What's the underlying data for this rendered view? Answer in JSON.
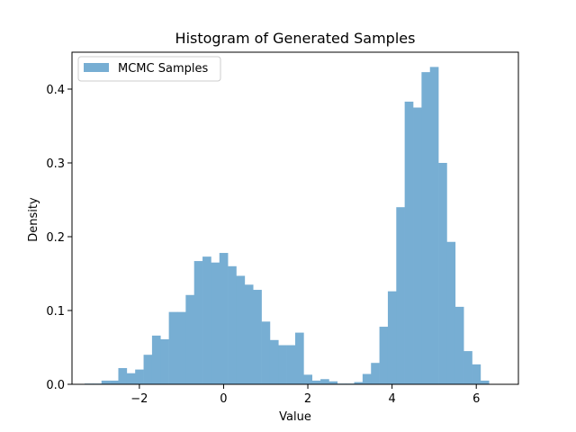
{
  "chart_data": {
    "type": "bar",
    "title": "Histogram of Generated Samples",
    "xlabel": "Value",
    "ylabel": "Density",
    "xlim": [
      -3.6,
      7.0
    ],
    "ylim": [
      0,
      0.45
    ],
    "xticks": [
      -2,
      0,
      2,
      4,
      6
    ],
    "xtick_labels": [
      "−2",
      "0",
      "2",
      "4",
      "6"
    ],
    "yticks": [
      0.0,
      0.1,
      0.2,
      0.3,
      0.4
    ],
    "ytick_labels": [
      "0.0",
      "0.1",
      "0.2",
      "0.3",
      "0.4"
    ],
    "grid": false,
    "legend": {
      "position": "top-left",
      "entries": [
        "MCMC Samples"
      ]
    },
    "bin_start": -3.3,
    "bin_width": 0.2,
    "series": [
      {
        "name": "MCMC Samples",
        "color": "#77aed3",
        "values": [
          0.001,
          0.001,
          0.005,
          0.005,
          0.022,
          0.015,
          0.02,
          0.04,
          0.066,
          0.061,
          0.098,
          0.098,
          0.121,
          0.167,
          0.173,
          0.165,
          0.178,
          0.16,
          0.147,
          0.135,
          0.128,
          0.085,
          0.06,
          0.053,
          0.053,
          0.07,
          0.013,
          0.005,
          0.007,
          0.004,
          0.001,
          0.001,
          0.003,
          0.014,
          0.029,
          0.078,
          0.126,
          0.24,
          0.383,
          0.375,
          0.423,
          0.43,
          0.3,
          0.193,
          0.105,
          0.045,
          0.027,
          0.005
        ]
      }
    ]
  }
}
